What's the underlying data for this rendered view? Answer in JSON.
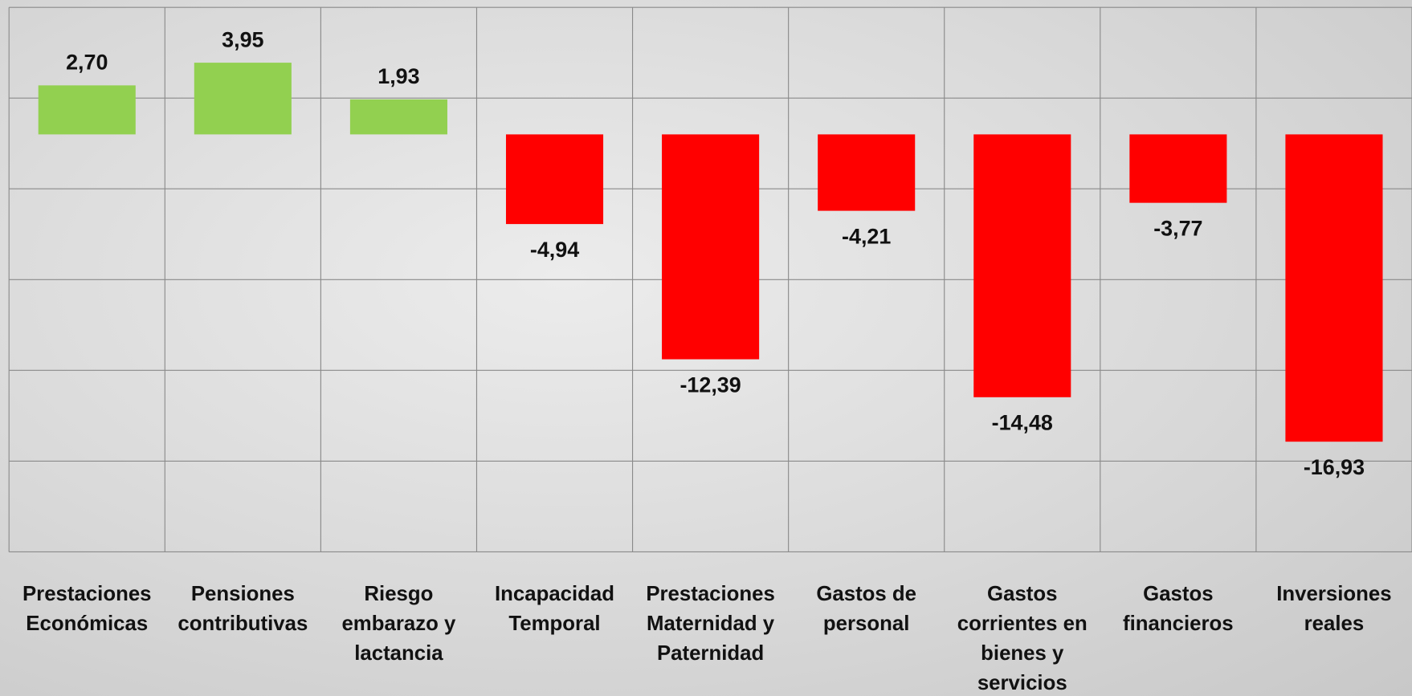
{
  "chart_data": {
    "type": "bar",
    "categories": [
      "Prestaciones Económicas",
      "Pensiones contributivas",
      "Riesgo embarazo y lactancia",
      "Incapacidad Temporal",
      "Prestaciones Maternidad y Paternidad",
      "Gastos de personal",
      "Gastos corrientes en bienes y servicios",
      "Gastos financieros",
      "Inversiones reales"
    ],
    "values": [
      2.7,
      3.95,
      1.93,
      -4.94,
      -12.39,
      -4.21,
      -14.48,
      -3.77,
      -16.93
    ],
    "value_labels": [
      "2,70",
      "3,95",
      "1,93",
      "-4,94",
      "-12,39",
      "-4,21",
      "-14,48",
      "-3,77",
      "-16,93"
    ],
    "positive_color": "#92d050",
    "negative_color": "#ff0000",
    "ylim": [
      -23,
      7
    ],
    "yticks": [
      -23,
      -18,
      -13,
      -8,
      -3,
      2,
      7
    ],
    "grid": true
  }
}
